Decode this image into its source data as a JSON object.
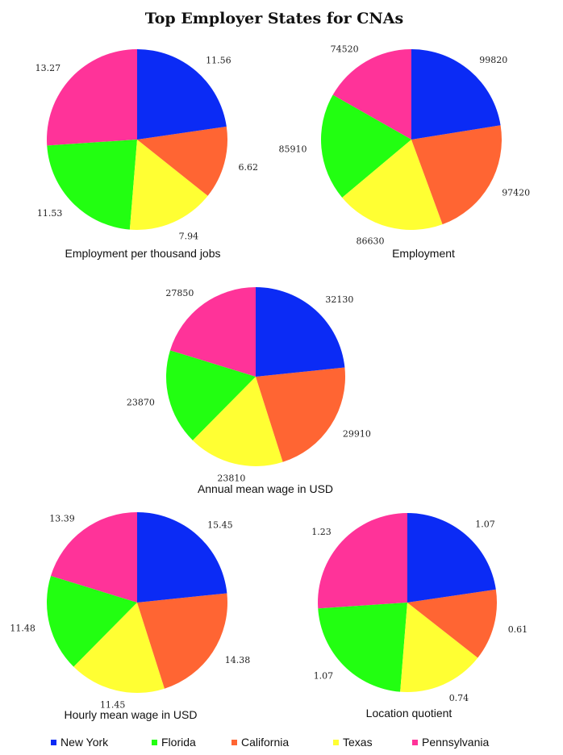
{
  "title": "Top Employer States for CNAs",
  "colors": {
    "New York": "#0b2bf5",
    "California": "#ff6533",
    "Texas": "#ffff33",
    "Florida": "#22ff11",
    "Pennsylvania": "#ff3399"
  },
  "legend": [
    {
      "label": "New York",
      "color": "#0b2bf5"
    },
    {
      "label": "Florida",
      "color": "#22ff11"
    },
    {
      "label": "California",
      "color": "#ff6533"
    },
    {
      "label": "Texas",
      "color": "#ffff33"
    },
    {
      "label": "Pennsylvania",
      "color": "#ff3399"
    }
  ],
  "chart_data": [
    {
      "type": "pie",
      "caption": "Employment per thousand jobs",
      "categories": [
        "New York",
        "California",
        "Texas",
        "Florida",
        "Pennsylvania"
      ],
      "values": [
        11.56,
        6.62,
        7.94,
        11.53,
        13.27
      ],
      "labels": [
        "11.56",
        "6.62",
        "7.94",
        "11.53",
        "13.27"
      ]
    },
    {
      "type": "pie",
      "caption": "Employment",
      "categories": [
        "New York",
        "California",
        "Texas",
        "Florida",
        "Pennsylvania"
      ],
      "values": [
        99820,
        97420,
        86630,
        85910,
        74520
      ],
      "labels": [
        "99820",
        "97420",
        "86630",
        "85910",
        "74520"
      ]
    },
    {
      "type": "pie",
      "caption": "Annual mean wage in USD",
      "categories": [
        "New York",
        "California",
        "Texas",
        "Florida",
        "Pennsylvania"
      ],
      "values": [
        32130,
        29910,
        23810,
        23870,
        27850
      ],
      "labels": [
        "32130",
        "29910",
        "23810",
        "23870",
        "27850"
      ]
    },
    {
      "type": "pie",
      "caption": "Hourly mean wage in USD",
      "categories": [
        "New York",
        "California",
        "Texas",
        "Florida",
        "Pennsylvania"
      ],
      "values": [
        15.45,
        14.38,
        11.45,
        11.48,
        13.39
      ],
      "labels": [
        "15.45",
        "14.38",
        "11.45",
        "11.48",
        "13.39"
      ]
    },
    {
      "type": "pie",
      "caption": "Location quotient",
      "categories": [
        "New York",
        "California",
        "Texas",
        "Florida",
        "Pennsylvania"
      ],
      "values": [
        1.07,
        0.61,
        0.74,
        1.07,
        1.23
      ],
      "labels": [
        "1.07",
        "0.61",
        "0.74",
        "1.07",
        "1.23"
      ]
    }
  ]
}
